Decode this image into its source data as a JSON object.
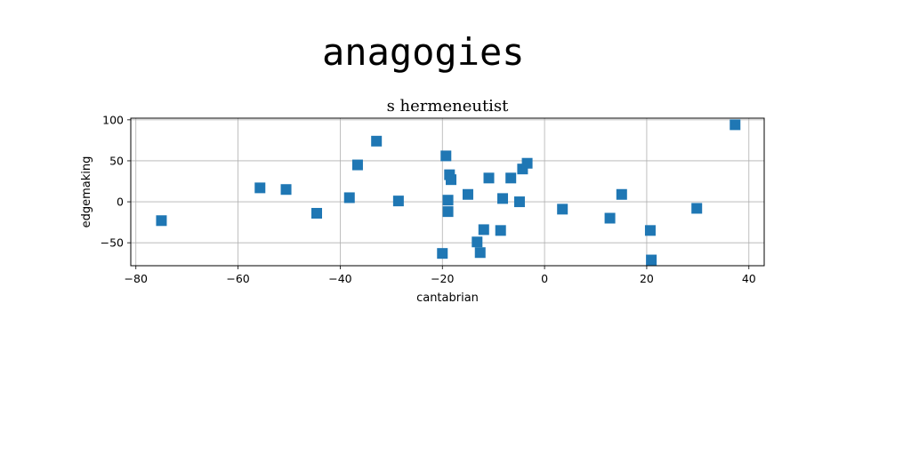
{
  "title": "anagogies",
  "chart_data": {
    "type": "scatter",
    "title": "s hermeneutist",
    "xlabel": "cantabrian",
    "ylabel": "edgemaking",
    "xlim": [
      -81,
      43
    ],
    "ylim": [
      -78,
      102
    ],
    "xticks": [
      -80,
      -60,
      -40,
      -20,
      0,
      20,
      40
    ],
    "yticks": [
      -50,
      0,
      50,
      100
    ],
    "grid": true,
    "marker": "square",
    "color": "#1f77b4",
    "points": [
      {
        "x": -75,
        "y": -23
      },
      {
        "x": -55.7,
        "y": 17
      },
      {
        "x": -50.6,
        "y": 15
      },
      {
        "x": -44.6,
        "y": -14
      },
      {
        "x": -38.2,
        "y": 5
      },
      {
        "x": -36.6,
        "y": 45
      },
      {
        "x": -32.9,
        "y": 74
      },
      {
        "x": -28.6,
        "y": 1
      },
      {
        "x": -20,
        "y": -63
      },
      {
        "x": -19.3,
        "y": 56
      },
      {
        "x": -18.9,
        "y": 2
      },
      {
        "x": -18.9,
        "y": -12
      },
      {
        "x": -18.6,
        "y": 33
      },
      {
        "x": -18.3,
        "y": 27
      },
      {
        "x": -15,
        "y": 9
      },
      {
        "x": -13.2,
        "y": -49
      },
      {
        "x": -12.6,
        "y": -62
      },
      {
        "x": -11.9,
        "y": -34
      },
      {
        "x": -10.9,
        "y": 29
      },
      {
        "x": -8.6,
        "y": -35
      },
      {
        "x": -8.2,
        "y": 4
      },
      {
        "x": -6.6,
        "y": 29
      },
      {
        "x": -4.9,
        "y": 0
      },
      {
        "x": -4.3,
        "y": 40
      },
      {
        "x": -3.4,
        "y": 47
      },
      {
        "x": 3.5,
        "y": -9
      },
      {
        "x": 12.8,
        "y": -20
      },
      {
        "x": 15.1,
        "y": 9
      },
      {
        "x": 20.7,
        "y": -35
      },
      {
        "x": 20.9,
        "y": -71
      },
      {
        "x": 29.8,
        "y": -8
      },
      {
        "x": 37.3,
        "y": 94
      }
    ]
  }
}
